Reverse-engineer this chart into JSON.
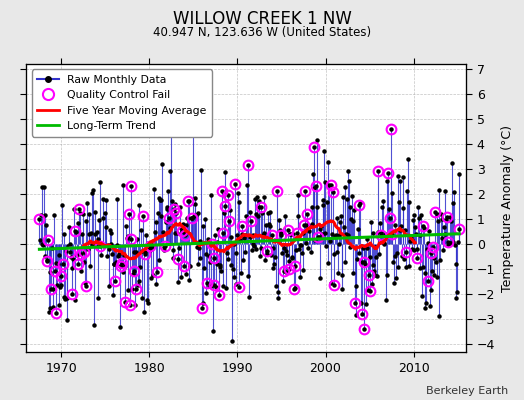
{
  "title": "WILLOW CREEK 1 NW",
  "subtitle": "40.947 N, 123.636 W (United States)",
  "ylabel": "Temperature Anomaly (°C)",
  "credit": "Berkeley Earth",
  "xlim": [
    1966,
    2016
  ],
  "ylim": [
    -4.3,
    7.2
  ],
  "yticks": [
    -4,
    -3,
    -2,
    -1,
    0,
    1,
    2,
    3,
    4,
    5,
    6,
    7
  ],
  "xticks": [
    1970,
    1980,
    1990,
    2000,
    2010
  ],
  "line_color": "#3333cc",
  "marker_color": "#000000",
  "qc_color": "#ff00ff",
  "moving_avg_color": "#ff0000",
  "trend_color": "#00bb00",
  "plot_bg": "#ffffff",
  "fig_bg": "#e8e8e8",
  "seed": 42
}
